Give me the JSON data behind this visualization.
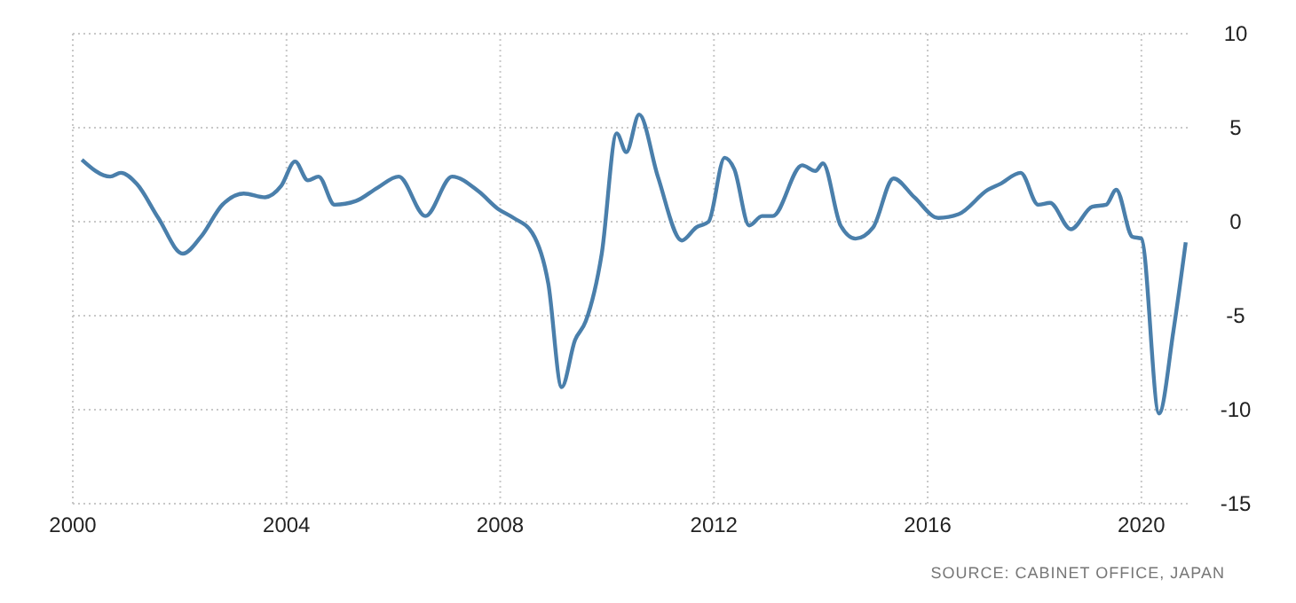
{
  "chart_data": {
    "type": "line",
    "annotations": [
      "SOURCE: CABINET OFFICE, JAPAN"
    ],
    "x": [
      2000.17,
      2000.7,
      2000.9,
      2001.2,
      2001.6,
      2002.06,
      2002.4,
      2002.8,
      2003.2,
      2003.6,
      2003.9,
      2004.16,
      2004.4,
      2004.6,
      2004.9,
      2005.3,
      2005.7,
      2006.1,
      2006.6,
      2007.1,
      2007.6,
      2007.95,
      2008.25,
      2008.6,
      2008.9,
      2009.15,
      2009.4,
      2009.6,
      2009.9,
      2010.18,
      2010.36,
      2010.6,
      2010.95,
      2011.4,
      2011.67,
      2011.9,
      2012.2,
      2012.38,
      2012.66,
      2012.9,
      2013.1,
      2013.65,
      2013.9,
      2014.04,
      2014.37,
      2014.65,
      2014.98,
      2015.36,
      2015.75,
      2016.2,
      2016.58,
      2017.13,
      2017.35,
      2017.74,
      2018.07,
      2018.29,
      2018.68,
      2019.08,
      2019.34,
      2019.53,
      2019.83,
      2020.0,
      2020.33,
      2020.6,
      2020.83
    ],
    "series": [
      {
        "color": "#4a7fab",
        "values": [
          3.3,
          2.4,
          2.6,
          2.0,
          0.2,
          -1.7,
          -0.8,
          0.9,
          1.5,
          1.3,
          1.9,
          3.2,
          2.2,
          2.4,
          0.9,
          1.1,
          1.8,
          2.4,
          0.3,
          2.4,
          1.6,
          0.7,
          0.2,
          -0.6,
          -3.3,
          -8.8,
          -6.3,
          -5.3,
          -1.7,
          4.7,
          3.7,
          5.7,
          2.4,
          -1.0,
          -0.3,
          0.0,
          3.4,
          2.8,
          -0.2,
          0.3,
          0.3,
          3.0,
          2.7,
          3.1,
          -0.2,
          -0.9,
          -0.3,
          2.3,
          1.3,
          0.2,
          0.4,
          1.7,
          2.0,
          2.6,
          0.9,
          1.0,
          -0.4,
          0.8,
          0.9,
          1.7,
          -0.8,
          -0.9,
          -10.2,
          -5.8,
          -1.1
        ]
      }
    ],
    "xlim": [
      2000,
      2020.9
    ],
    "xticks": [
      2000,
      2004,
      2008,
      2012,
      2016,
      2020
    ],
    "ylim": [
      -15,
      10
    ],
    "yticks": [
      -15,
      -10,
      -5,
      0,
      5,
      10
    ],
    "grid": true,
    "line_style": "solid",
    "marker": "none"
  }
}
